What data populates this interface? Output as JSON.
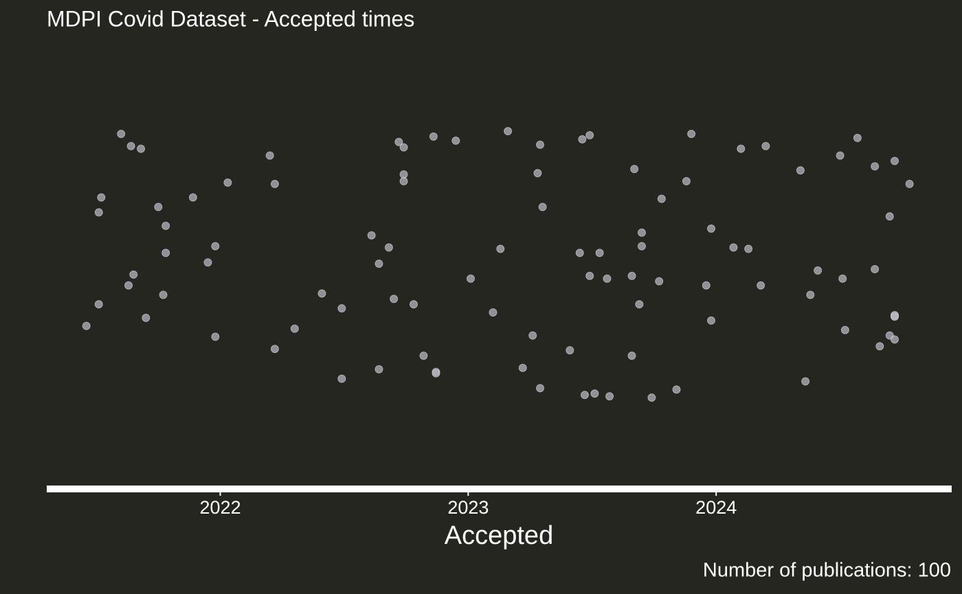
{
  "chart_data": {
    "type": "scatter",
    "title": "MDPI Covid Dataset - Accepted times",
    "x_label": "Accepted",
    "caption": "Number of publications: 100",
    "color": "#b4b6bf",
    "xlim": [
      2021.3,
      2024.95
    ],
    "ylim": [
      -1.65,
      1.65
    ],
    "xticks": [
      2022,
      2023,
      2024
    ],
    "x": [
      2021.46,
      2021.51,
      2021.51,
      2021.52,
      2021.6,
      2021.64,
      2021.68,
      2021.63,
      2021.65,
      2021.7,
      2021.75,
      2021.78,
      2021.78,
      2021.77,
      2021.89,
      2021.95,
      2021.98,
      2021.98,
      2022.03,
      2022.2,
      2022.22,
      2022.22,
      2022.3,
      2022.41,
      2022.49,
      2022.49,
      2022.61,
      2022.64,
      2022.64,
      2022.68,
      2022.7,
      2022.72,
      2022.74,
      2022.74,
      2022.74,
      2022.78,
      2022.82,
      2022.86,
      2022.87,
      2022.87,
      2022.95,
      2023.01,
      2023.1,
      2023.13,
      2023.16,
      2023.22,
      2023.26,
      2023.28,
      2023.29,
      2023.29,
      2023.3,
      2023.41,
      2023.45,
      2023.46,
      2023.47,
      2023.49,
      2023.49,
      2023.51,
      2023.53,
      2023.56,
      2023.57,
      2023.66,
      2023.66,
      2023.67,
      2023.69,
      2023.7,
      2023.7,
      2023.74,
      2023.77,
      2023.78,
      2023.84,
      2023.88,
      2023.9,
      2023.96,
      2023.98,
      2023.98,
      2024.07,
      2024.1,
      2024.13,
      2024.18,
      2024.2,
      2024.34,
      2024.36,
      2024.38,
      2024.41,
      2024.5,
      2024.51,
      2024.52,
      2024.57,
      2024.64,
      2024.64,
      2024.66,
      2024.7,
      2024.7,
      2024.72,
      2024.72,
      2024.72,
      2024.72,
      2024.78,
      2024.72
    ],
    "values": [
      -0.44,
      -0.28,
      0.4,
      0.51,
      0.98,
      0.89,
      0.87,
      -0.14,
      -0.06,
      -0.38,
      0.44,
      0.3,
      0.1,
      -0.21,
      0.51,
      0.03,
      0.15,
      -0.52,
      0.62,
      0.82,
      0.61,
      -0.61,
      -0.46,
      -0.2,
      -0.31,
      -0.83,
      0.23,
      0.02,
      -0.76,
      0.14,
      -0.24,
      0.92,
      0.88,
      0.68,
      0.63,
      -0.28,
      -0.66,
      0.96,
      -0.78,
      -0.79,
      0.93,
      -0.09,
      -0.34,
      0.13,
      1.0,
      -0.75,
      -0.51,
      0.69,
      0.9,
      -0.9,
      0.44,
      -0.62,
      0.1,
      0.94,
      -0.95,
      0.97,
      -0.07,
      -0.94,
      0.1,
      -0.09,
      -0.96,
      -0.66,
      -0.07,
      0.72,
      -0.28,
      0.25,
      0.15,
      -0.97,
      -0.11,
      0.5,
      -0.91,
      0.63,
      0.98,
      -0.14,
      0.28,
      -0.4,
      0.14,
      0.87,
      0.13,
      -0.14,
      0.89,
      0.71,
      -0.85,
      -0.21,
      -0.03,
      0.82,
      -0.09,
      -0.47,
      0.95,
      0.74,
      -0.02,
      -0.59,
      0.37,
      -0.51,
      -0.37,
      -0.36,
      0.78,
      -0.54,
      0.61,
      -0.37
    ]
  }
}
